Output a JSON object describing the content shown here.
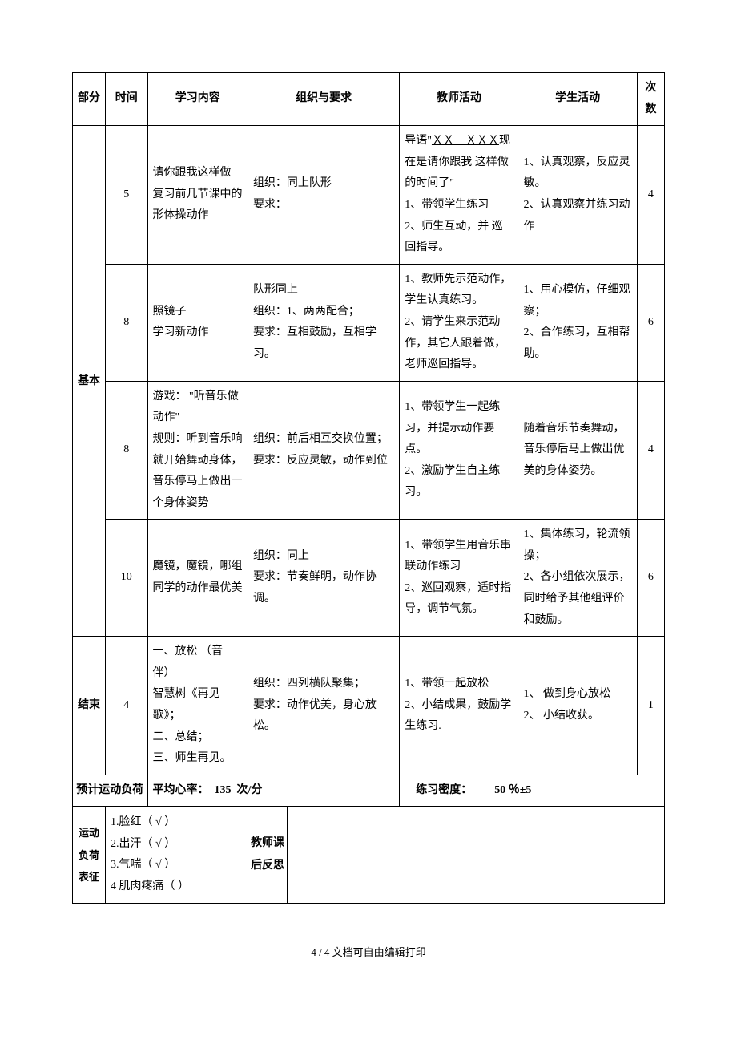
{
  "header": {
    "part": "部分",
    "time": "时间",
    "content": "学习内容",
    "org": "组织与要求",
    "teacher": "教师活动",
    "student": "学生活动",
    "count": "次数"
  },
  "sections": {
    "basic": {
      "label": "基本",
      "rows": [
        {
          "time": "5",
          "content": "请你跟我这样做\n复习前几节课中的形体操动作",
          "org": "组织：同上队形\n要求：",
          "teacher_prefix": "导语\"",
          "teacher_underlined": "ＸＸ　ＸＸＸ",
          "teacher_suffix": "现在是请你跟我 这样做的时间了\"\n1、带领学生练习\n2、师生互动，并 巡回指导。",
          "student": "1、认真观察，反应灵敏。\n2、认真观察并练习动作",
          "count": "4"
        },
        {
          "time": "8",
          "content": "照镜子\n学习新动作",
          "org": "队形同上\n组织：1、两两配合；\n要求：互相鼓励，互相学习。",
          "teacher": "1、教师先示范动作，学生认真练习。\n2、请学生来示范动作，其它人跟着做，老师巡回指导。",
          "student": "1、用心模仿，仔细观察；\n2、合作练习，互相帮助。",
          "count": "6"
        },
        {
          "time": "8",
          "content": "游戏： \"听音乐做动作\"\n规则：听到音乐响就开始舞动身体，音乐停马上做出一个身体姿势",
          "org": "组织：前后相互交换位置；\n要求：反应灵敏，动作到位",
          "teacher": "1、带领学生一起练习，并提示动作要点。\n2、激励学生自主练习。",
          "student": "随着音乐节奏舞动，音乐停后马上做出优美的身体姿势。",
          "count": "4"
        },
        {
          "time": "10",
          "content": "魔镜，魔镜，哪组同学的动作最优美",
          "org": "组织：同上\n要求：节奏鲜明，动作协调。",
          "teacher": "1、带领学生用音乐串联动作练习\n2、巡回观察，适时指导，调节气氛。",
          "student": "1、集体练习，轮流领操；\n2、各小组依次展示，同时给予其他组评价和鼓励。",
          "count": "6"
        }
      ]
    },
    "end": {
      "label": "结束",
      "time": "4",
      "content": "一、放松 （音伴）\n智慧树《再见歌》；\n二、总结；\n三、师生再见。",
      "org": "组织：四列横队聚集；\n要求：动作优美，身心放松。",
      "teacher": "1、带领一起放松\n2、小结成果，鼓励学生练习.",
      "student": "1、 做到身心放松\n2、 小结收获。",
      "count": "1"
    }
  },
  "load": {
    "predict_label": "预计运动负荷",
    "heart_rate_label": "平均心率：",
    "heart_rate_value": "135",
    "heart_rate_unit": "次/分",
    "density_label": "练习密度：",
    "density_value": "50 ％±5"
  },
  "indicators": {
    "label": "运动负荷表征",
    "items": "1.脸红（ √ ）\n2.出汗（ √ ）\n3.气喘（  √  ）\n4 肌肉疼痛（   ）",
    "reflection_label": "教师课后反思",
    "reflection_content": ""
  },
  "footer": "4 / 4 文档可自由编辑打印"
}
